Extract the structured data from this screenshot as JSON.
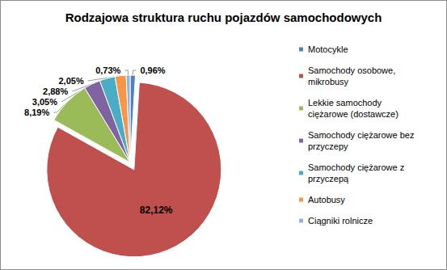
{
  "chart_data": {
    "type": "pie",
    "title": "Rodzajowa struktura ruchu pojazdów samochodowych",
    "categories": [
      "Motocykle",
      "Samochody osobowe, mikrobusy",
      "Lekkie samochody ciężarowe (dostawcze)",
      "Samochody ciężarowe bez przyczepy",
      "Samochody ciężarowe z przyczepą",
      "Autobusy",
      "Ciągniki rolnicze"
    ],
    "values": [
      0.96,
      82.12,
      8.19,
      3.05,
      2.88,
      2.05,
      0.73
    ],
    "value_labels": [
      "0,96%",
      "82,12%",
      "8,19%",
      "3,05%",
      "2,88%",
      "2,05%",
      "0,73%"
    ],
    "colors": [
      "#4f81bd",
      "#c0504d",
      "#9bbb59",
      "#8064a2",
      "#4bacc6",
      "#f79646",
      "#95b3d7"
    ],
    "data_labels": true,
    "legend": "right"
  }
}
